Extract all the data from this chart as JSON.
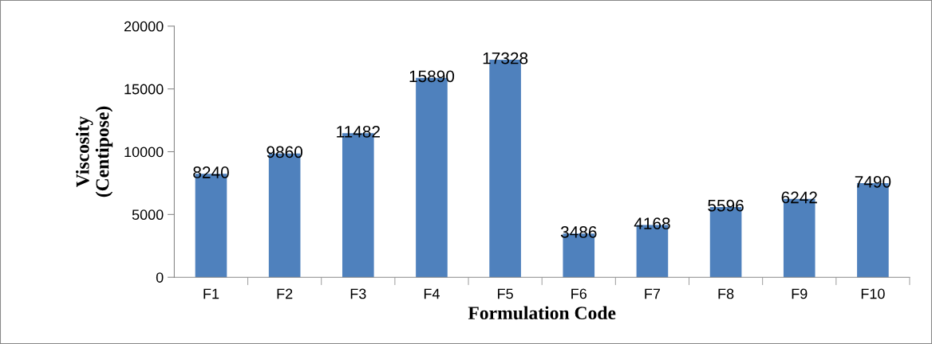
{
  "chart_data": {
    "type": "bar",
    "xlabel": "Formulation Code",
    "ylabel": "Viscosity\n(Centipose)",
    "categories": [
      "F1",
      "F2",
      "F3",
      "F4",
      "F5",
      "F6",
      "F7",
      "F8",
      "F9",
      "F10"
    ],
    "values": [
      8240,
      9860,
      11482,
      15890,
      17328,
      3486,
      4168,
      5596,
      6242,
      7490
    ],
    "color": "#4f81bd",
    "ylim": [
      0,
      20000
    ],
    "yticks": [
      0,
      5000,
      10000,
      15000,
      20000
    ],
    "grid": false,
    "legend": false,
    "data_labels": true
  }
}
